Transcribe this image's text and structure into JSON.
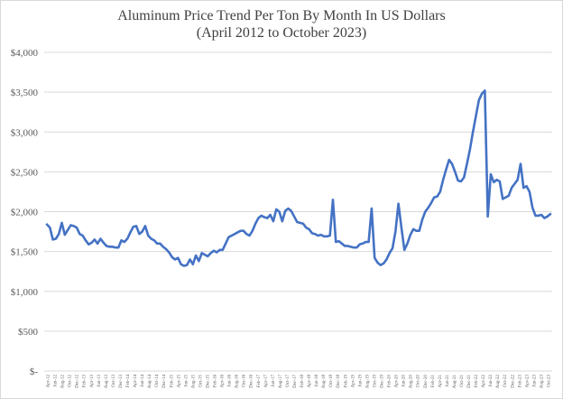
{
  "chart_data": {
    "type": "line",
    "title": "Aluminum Price Trend Per Ton By Month In US Dollars",
    "subtitle": "(April 2012 to October 2023)",
    "xlabel": "",
    "ylabel": "",
    "ylim": [
      0,
      4000
    ],
    "grid": "horizontal",
    "legend": "none",
    "colors": {
      "line": "#4472c4",
      "grid": "#d9d9d9",
      "text": "#595959"
    },
    "y_ticks": [
      "$-",
      "$500",
      "$1,000",
      "$1,500",
      "$2,000",
      "$2,500",
      "$3,000",
      "$3,500",
      "$4,000"
    ],
    "x_ticks": [
      "Apr-12",
      "Jun-12",
      "Aug-12",
      "Oct-12",
      "Dec-12",
      "Feb-13",
      "Apr-13",
      "Jun-13",
      "Aug-13",
      "Oct-13",
      "Dec-13",
      "Feb-14",
      "Apr-14",
      "Jun-14",
      "Aug-14",
      "Oct-14",
      "Dec-14",
      "Feb-15",
      "Apr-15",
      "Jun-15",
      "Aug-15",
      "Oct-15",
      "Dec-15",
      "Feb-16",
      "Apr-16",
      "Jun-16",
      "Aug-16",
      "Oct-16",
      "Dec-16",
      "Feb-17",
      "Apr-17",
      "Jun-17",
      "Aug-17",
      "Oct-17",
      "Dec-17",
      "Feb-18",
      "Apr-18",
      "Jun-18",
      "Aug-18",
      "Oct-18",
      "Dec-18",
      "Feb-19",
      "Apr-19",
      "Jun-19",
      "Aug-19",
      "Oct-19",
      "Dec-19",
      "Feb-20",
      "Apr-20",
      "Jun-20",
      "Aug-20",
      "Oct-20",
      "Dec-20",
      "Feb-21",
      "Apr-21",
      "Jun-21",
      "Aug-21",
      "Oct-21",
      "Dec-21",
      "Feb-22",
      "Apr-22",
      "Jun-22",
      "Aug-22",
      "Oct-22",
      "Dec-22",
      "Feb-23",
      "Apr-23",
      "Jun-23",
      "Aug-23",
      "Oct-23"
    ],
    "series": [
      {
        "name": "",
        "values": [
          1840,
          1800,
          1650,
          1660,
          1720,
          1860,
          1710,
          1770,
          1830,
          1820,
          1800,
          1720,
          1700,
          1640,
          1590,
          1610,
          1650,
          1600,
          1660,
          1610,
          1570,
          1560,
          1560,
          1550,
          1550,
          1640,
          1620,
          1660,
          1740,
          1810,
          1820,
          1720,
          1750,
          1820,
          1700,
          1660,
          1640,
          1600,
          1600,
          1560,
          1530,
          1490,
          1430,
          1400,
          1420,
          1340,
          1320,
          1330,
          1400,
          1340,
          1450,
          1380,
          1480,
          1460,
          1440,
          1480,
          1510,
          1490,
          1520,
          1520,
          1600,
          1680,
          1700,
          1720,
          1740,
          1760,
          1760,
          1720,
          1700,
          1760,
          1850,
          1920,
          1950,
          1930,
          1920,
          1960,
          1880,
          2030,
          2000,
          1880,
          2010,
          2040,
          2010,
          1940,
          1870,
          1860,
          1850,
          1800,
          1780,
          1730,
          1720,
          1700,
          1710,
          1690,
          1690,
          1700,
          2150,
          1620,
          1630,
          1600,
          1570,
          1570,
          1560,
          1550,
          1550,
          1590,
          1600,
          1620,
          1620,
          2040,
          1420,
          1360,
          1330,
          1350,
          1400,
          1480,
          1540,
          1750,
          2100,
          1800,
          1520,
          1600,
          1710,
          1780,
          1760,
          1760,
          1900,
          2000,
          2050,
          2110,
          2180,
          2190,
          2250,
          2400,
          2530,
          2650,
          2600,
          2500,
          2390,
          2380,
          2430,
          2600,
          2780,
          3000,
          3200,
          3400,
          3480,
          3520,
          1940,
          2470,
          2370,
          2400,
          2380,
          2160,
          2180,
          2200,
          2300,
          2350,
          2400,
          2600,
          2300,
          2320,
          2250,
          2050,
          1950,
          1950,
          1960,
          1920,
          1940,
          1970
        ]
      }
    ]
  }
}
